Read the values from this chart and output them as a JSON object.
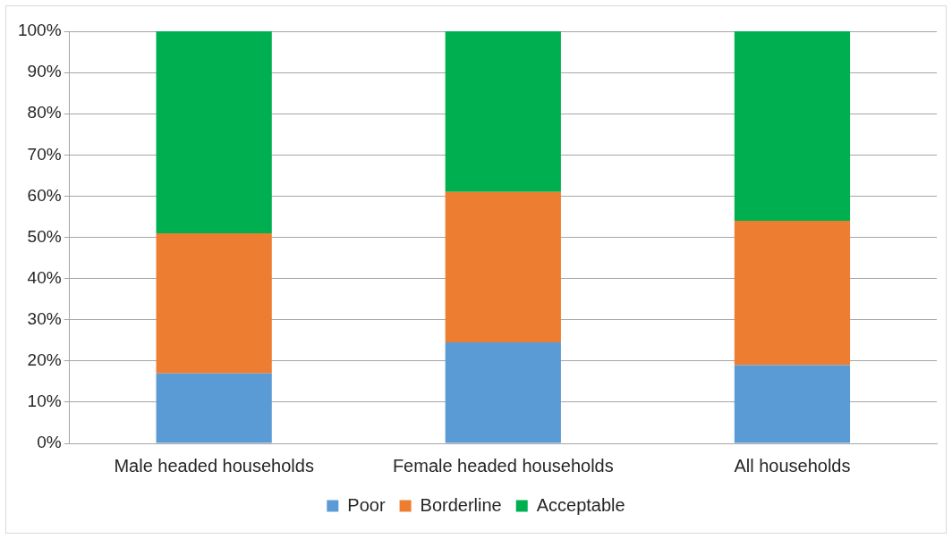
{
  "chart_data": {
    "type": "bar",
    "stacked": true,
    "categories": [
      "Male headed households",
      "Female headed households",
      "All households"
    ],
    "series": [
      {
        "name": "Poor",
        "color": "#5b9bd5",
        "values": [
          17,
          24.5,
          19
        ]
      },
      {
        "name": "Borderline",
        "color": "#ed7d31",
        "values": [
          34,
          36.5,
          35
        ]
      },
      {
        "name": "Acceptable",
        "color": "#00b050",
        "values": [
          49,
          39,
          46
        ]
      }
    ],
    "ylim": [
      0,
      100
    ],
    "yticks": [
      {
        "value": 0,
        "label": "0%"
      },
      {
        "value": 10,
        "label": "10%"
      },
      {
        "value": 20,
        "label": "20%"
      },
      {
        "value": 30,
        "label": "30%"
      },
      {
        "value": 40,
        "label": "40%"
      },
      {
        "value": 50,
        "label": "50%"
      },
      {
        "value": 60,
        "label": "60%"
      },
      {
        "value": 70,
        "label": "70%"
      },
      {
        "value": 80,
        "label": "80%"
      },
      {
        "value": 90,
        "label": "90%"
      },
      {
        "value": 100,
        "label": "100%"
      }
    ],
    "grid": "y",
    "legend": "bottom"
  }
}
